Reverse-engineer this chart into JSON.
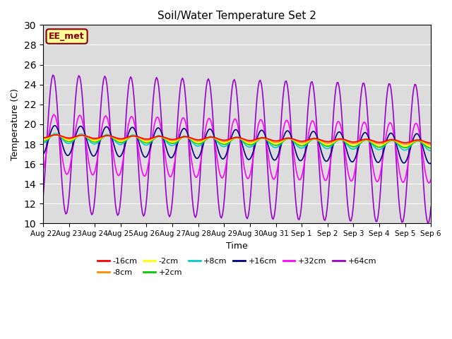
{
  "title": "Soil/Water Temperature Set 2",
  "xlabel": "Time",
  "ylabel": "Temperature (C)",
  "ylim": [
    10,
    30
  ],
  "yticks": [
    10,
    12,
    14,
    16,
    18,
    20,
    22,
    24,
    26,
    28,
    30
  ],
  "annotation_text": "EE_met",
  "annotation_color": "#8B0000",
  "annotation_bg": "#FFFF99",
  "bg_color": "#DCDCDC",
  "colors": {
    "-16cm": "#FF0000",
    "-8cm": "#FF8C00",
    "-2cm": "#FFFF00",
    "+2cm": "#00CC00",
    "+8cm": "#00CCCC",
    "+16cm": "#000080",
    "+32cm": "#FF00FF",
    "+64cm": "#9900CC"
  },
  "n_days": 15,
  "base_temp": 18.5
}
